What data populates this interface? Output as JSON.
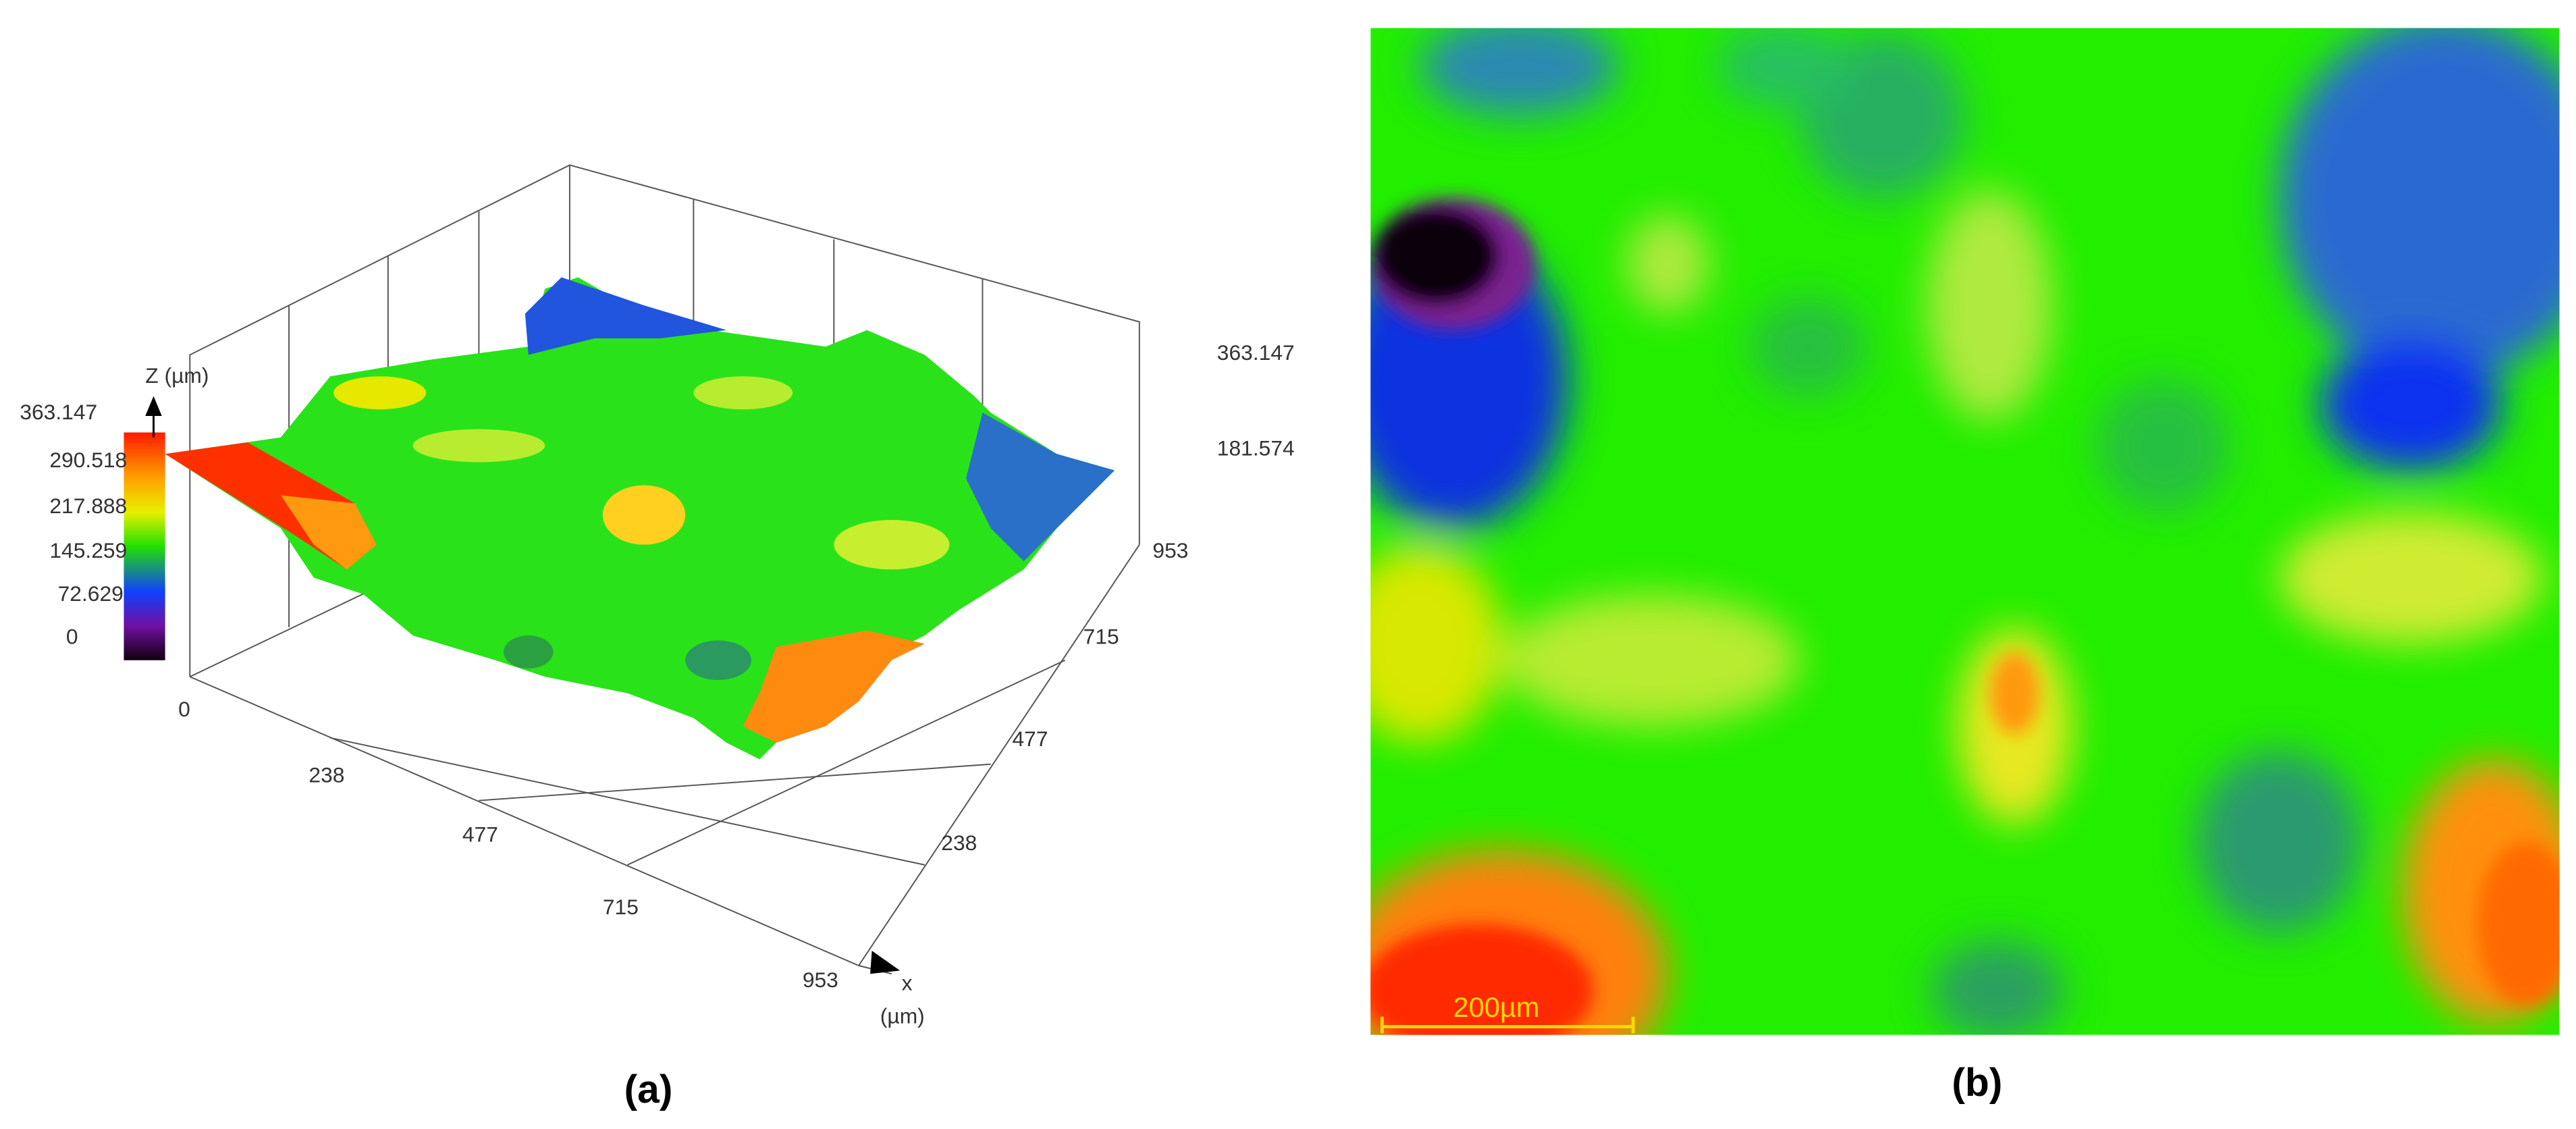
{
  "panel_a": {
    "z_axis_label": "Z (µm)",
    "x_axis_label": "x",
    "x_axis_unit": "(µm)",
    "x_ticks": [
      "0",
      "238",
      "477",
      "715",
      "953"
    ],
    "y_ticks": [
      "238",
      "477",
      "715",
      "953"
    ],
    "z_ticks": [
      "363.147",
      "181.574"
    ],
    "colorbar_ticks": [
      "363.147",
      "290.518",
      "217.888",
      "145.259",
      "72.629",
      "0"
    ],
    "caption": "(a)"
  },
  "panel_b": {
    "scale_bar": "200µm",
    "caption": "(b)"
  }
}
